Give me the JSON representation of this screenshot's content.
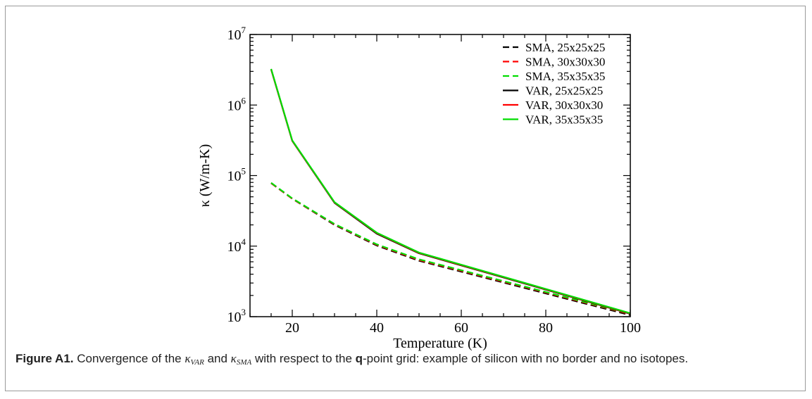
{
  "chart_data": {
    "type": "line",
    "xlabel": "Temperature (K)",
    "ylabel": "κ (W/m-K)",
    "xlim": [
      10,
      100
    ],
    "ylim": [
      1000,
      10000000
    ],
    "yscale": "log",
    "xticks": [
      20,
      40,
      60,
      80,
      100
    ],
    "yticks": [
      {
        "value": 1000,
        "base": "10",
        "exp": "3"
      },
      {
        "value": 10000,
        "base": "10",
        "exp": "4"
      },
      {
        "value": 100000,
        "base": "10",
        "exp": "5"
      },
      {
        "value": 1000000,
        "base": "10",
        "exp": "6"
      },
      {
        "value": 10000000,
        "base": "10",
        "exp": "7"
      }
    ],
    "grid": false,
    "legend_position": "top-right",
    "x": [
      15,
      20,
      30,
      40,
      50,
      100
    ],
    "series": [
      {
        "name": "SMA, 25x25x25",
        "color": "#000000",
        "dashed": true,
        "values": [
          78000,
          47000,
          20000,
          10200,
          6200,
          1050
        ]
      },
      {
        "name": "SMA, 30x30x30",
        "color": "#ff0000",
        "dashed": true,
        "values": [
          78000,
          47000,
          20300,
          10400,
          6350,
          1080
        ]
      },
      {
        "name": "SMA, 35x35x35",
        "color": "#00dd00",
        "dashed": true,
        "values": [
          79000,
          47500,
          20600,
          10600,
          6500,
          1100
        ]
      },
      {
        "name": "VAR, 25x25x25",
        "color": "#000000",
        "dashed": false,
        "values": [
          3200000,
          310000,
          41000,
          15000,
          7900,
          1100
        ]
      },
      {
        "name": "VAR, 30x30x30",
        "color": "#ff0000",
        "dashed": false,
        "values": [
          3200000,
          312000,
          41500,
          15300,
          8000,
          1110
        ]
      },
      {
        "name": "VAR, 35x35x35",
        "color": "#00dd00",
        "dashed": false,
        "values": [
          3250000,
          315000,
          42000,
          15500,
          8100,
          1120
        ]
      }
    ]
  },
  "caption": {
    "label": "Figure A1.",
    "text_1": " Convergence of the ",
    "kappa_var": "κ",
    "kappa_var_sub": "VAR",
    "text_2": " and ",
    "kappa_sma": "κ",
    "kappa_sma_sub": "SMA",
    "text_3": " with respect to the ",
    "q_bold": "q",
    "text_4": "-point grid: example of silicon with no border and no isotopes."
  }
}
